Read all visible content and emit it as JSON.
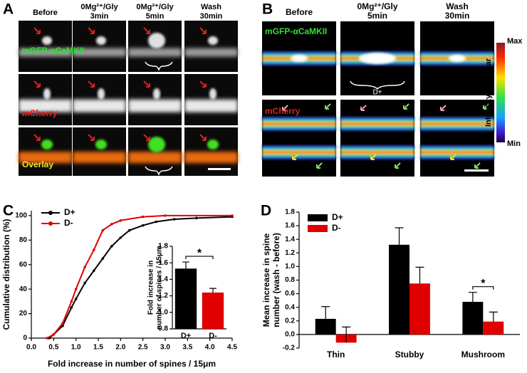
{
  "panels": {
    "A": {
      "letter": "A",
      "columns": [
        [
          "Before"
        ],
        [
          "0Mg²⁺/Gly",
          "3min"
        ],
        [
          "0Mg²⁺/Gly",
          "5min"
        ],
        [
          "Wash",
          "30min"
        ]
      ],
      "rows": [
        "mGFP-αCaMKII",
        "mCherry",
        "Overlay"
      ]
    },
    "B": {
      "letter": "B",
      "columns": [
        [
          "Before"
        ],
        [
          "0Mg²⁺/Gly",
          "5min"
        ],
        [
          "Wash",
          "30min"
        ]
      ],
      "rows": [
        "mGFP-αCaMKII",
        "mCherry"
      ],
      "bracket_label": "D+",
      "scale_bar": {
        "title": "Intensity scale bar",
        "max": "Max",
        "min": "Min"
      }
    },
    "C": {
      "letter": "C"
    },
    "D": {
      "letter": "D"
    }
  },
  "chart_data": [
    {
      "type": "line",
      "xlabel": "Fold increase in number of spines / 15μm",
      "ylabel": "Cumulative distribution (%)",
      "xlim": [
        0,
        4.5
      ],
      "xticks": [
        {
          "value": 0,
          "label": "0.0"
        },
        0.5,
        {
          "value": 1,
          "label": "1.0"
        },
        1.5,
        {
          "value": 2,
          "label": "2.0"
        },
        2.5,
        {
          "value": 3,
          "label": "3.0"
        },
        3.5,
        {
          "value": 4,
          "label": "4.0"
        },
        4.5
      ],
      "ylim": [
        0,
        104
      ],
      "yticks": [
        0,
        20,
        40,
        60,
        80,
        100
      ],
      "legend": "top-left",
      "series": [
        {
          "name": "D+",
          "color": "#000000",
          "x": [
            0.4,
            0.5,
            0.7,
            0.9,
            1.0,
            1.2,
            1.4,
            1.6,
            1.8,
            2.0,
            2.2,
            2.5,
            2.8,
            3.2,
            3.7,
            4.5
          ],
          "values": [
            0,
            3,
            10,
            25,
            32,
            45,
            55,
            65,
            75,
            82,
            88,
            92,
            95,
            97,
            98,
            99
          ]
        },
        {
          "name": "D-",
          "color": "#e00000",
          "x": [
            0.35,
            0.5,
            0.7,
            0.9,
            1.0,
            1.2,
            1.4,
            1.6,
            1.8,
            2.0,
            2.5,
            3.0,
            4.5
          ],
          "values": [
            0,
            3,
            12,
            30,
            40,
            58,
            72,
            88,
            93,
            96,
            99,
            100,
            100
          ]
        }
      ]
    },
    {
      "type": "bar",
      "ylabel": [
        "Fold increase in",
        "number of spines / 15μm"
      ],
      "categories": [
        "D+",
        "D-"
      ],
      "values": [
        1.53,
        1.24
      ],
      "errors": [
        0.08,
        0.05
      ],
      "colors": [
        "#000000",
        "#e00000"
      ],
      "ylim": [
        0.8,
        1.8
      ],
      "yticks": [
        0.8,
        {
          "value": 1,
          "label": "1.0"
        },
        1.2,
        1.4,
        1.6,
        1.8
      ],
      "annotation": "*"
    },
    {
      "type": "bar",
      "ylabel": [
        "Mean increase in spine",
        "number (wash - before)"
      ],
      "categories": [
        "Thin",
        "Stubby",
        "Mushroom"
      ],
      "series": [
        {
          "name": "D+",
          "color": "#000000",
          "values": [
            0.23,
            1.32,
            0.48
          ],
          "errors": [
            0.18,
            0.25,
            0.14
          ]
        },
        {
          "name": "D-",
          "color": "#e00000",
          "values": [
            -0.12,
            0.75,
            0.19
          ],
          "errors": [
            0.23,
            0.24,
            0.14
          ]
        }
      ],
      "ylim": [
        -0.2,
        1.8
      ],
      "yticks": [
        -0.2,
        {
          "value": 0,
          "label": "0.0"
        },
        0.2,
        0.4,
        0.6,
        0.8,
        {
          "value": 1,
          "label": "1.0"
        },
        1.2,
        1.4,
        1.6,
        1.8
      ],
      "legend": "top-left",
      "annotation": "*"
    }
  ]
}
